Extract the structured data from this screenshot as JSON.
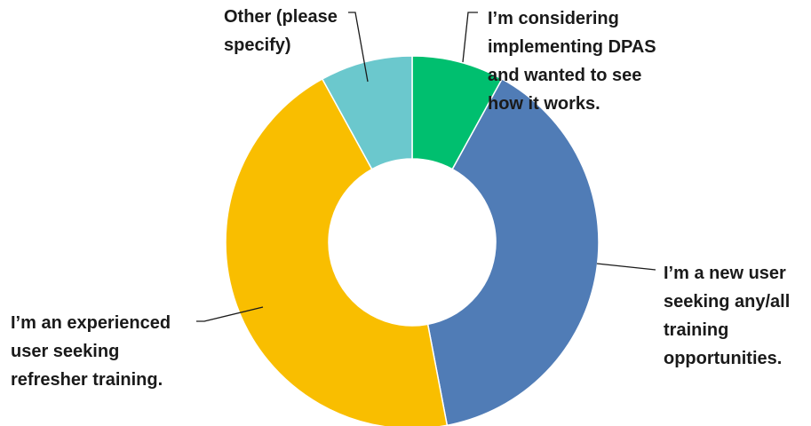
{
  "chart_data": {
    "type": "pie",
    "title": "",
    "hole": true,
    "slices": [
      {
        "label_lines": [
          "I’m considering",
          "implementing DPAS",
          "and wanted to see",
          "how it works."
        ],
        "value": 8,
        "color": "#00BF6F"
      },
      {
        "label_lines": [
          "I’m a new user",
          "seeking any/all",
          "training",
          "opportunities."
        ],
        "value": 39,
        "color": "#507CB6"
      },
      {
        "label_lines": [
          "I’m an experienced",
          "user seeking",
          "refresher training."
        ],
        "value": 45,
        "color": "#F9BE00"
      },
      {
        "label_lines": [
          "Other (please",
          "specify)"
        ],
        "value": 8,
        "color": "#6BC8CD"
      }
    ]
  }
}
